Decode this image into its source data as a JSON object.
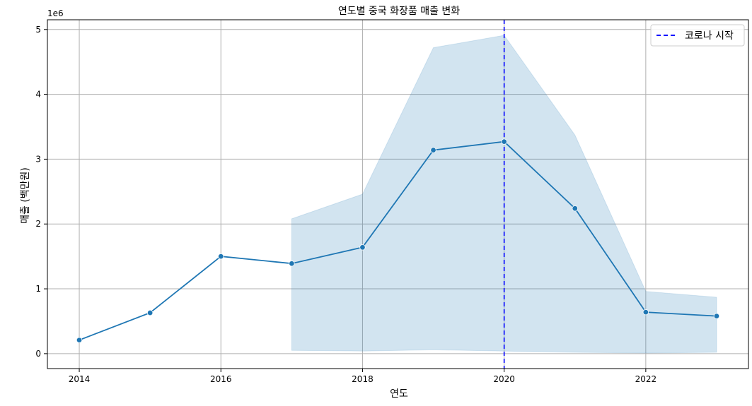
{
  "chart_data": {
    "type": "line",
    "title": "연도별 중국 화장품 매출 변화",
    "xlabel": "연도",
    "ylabel": "매출 (백만원)",
    "y_multiplier_label": "1e6",
    "xlim": [
      2013.55,
      2023.45
    ],
    "ylim": [
      -230000,
      5150000
    ],
    "xticks": [
      2014,
      2016,
      2018,
      2020,
      2022
    ],
    "yticks": [
      0,
      1000000,
      2000000,
      3000000,
      4000000,
      5000000
    ],
    "ytick_labels": [
      "0",
      "1",
      "2",
      "3",
      "4",
      "5"
    ],
    "grid": true,
    "legend_position": "top-right",
    "series": [
      {
        "x": [
          2014,
          2015,
          2016,
          2017,
          2018,
          2019,
          2020,
          2021,
          2022,
          2023
        ],
        "values": [
          210000,
          630000,
          1500000,
          1390000,
          1640000,
          3140000,
          3270000,
          2240000,
          640000,
          580000
        ],
        "color": "#1f77b4",
        "marker": "circle"
      }
    ],
    "confidence_band": {
      "x": [
        2017,
        2018,
        2019,
        2020,
        2021,
        2022,
        2023
      ],
      "lower": [
        50000,
        40000,
        60000,
        40000,
        20000,
        10000,
        20000
      ],
      "upper": [
        2080000,
        2460000,
        4720000,
        4910000,
        3370000,
        960000,
        870000
      ],
      "color": "#1f77b4"
    },
    "reference_line": {
      "x": 2020,
      "label": "코로나 시작",
      "color": "#0000ff",
      "style": "dashed"
    }
  }
}
